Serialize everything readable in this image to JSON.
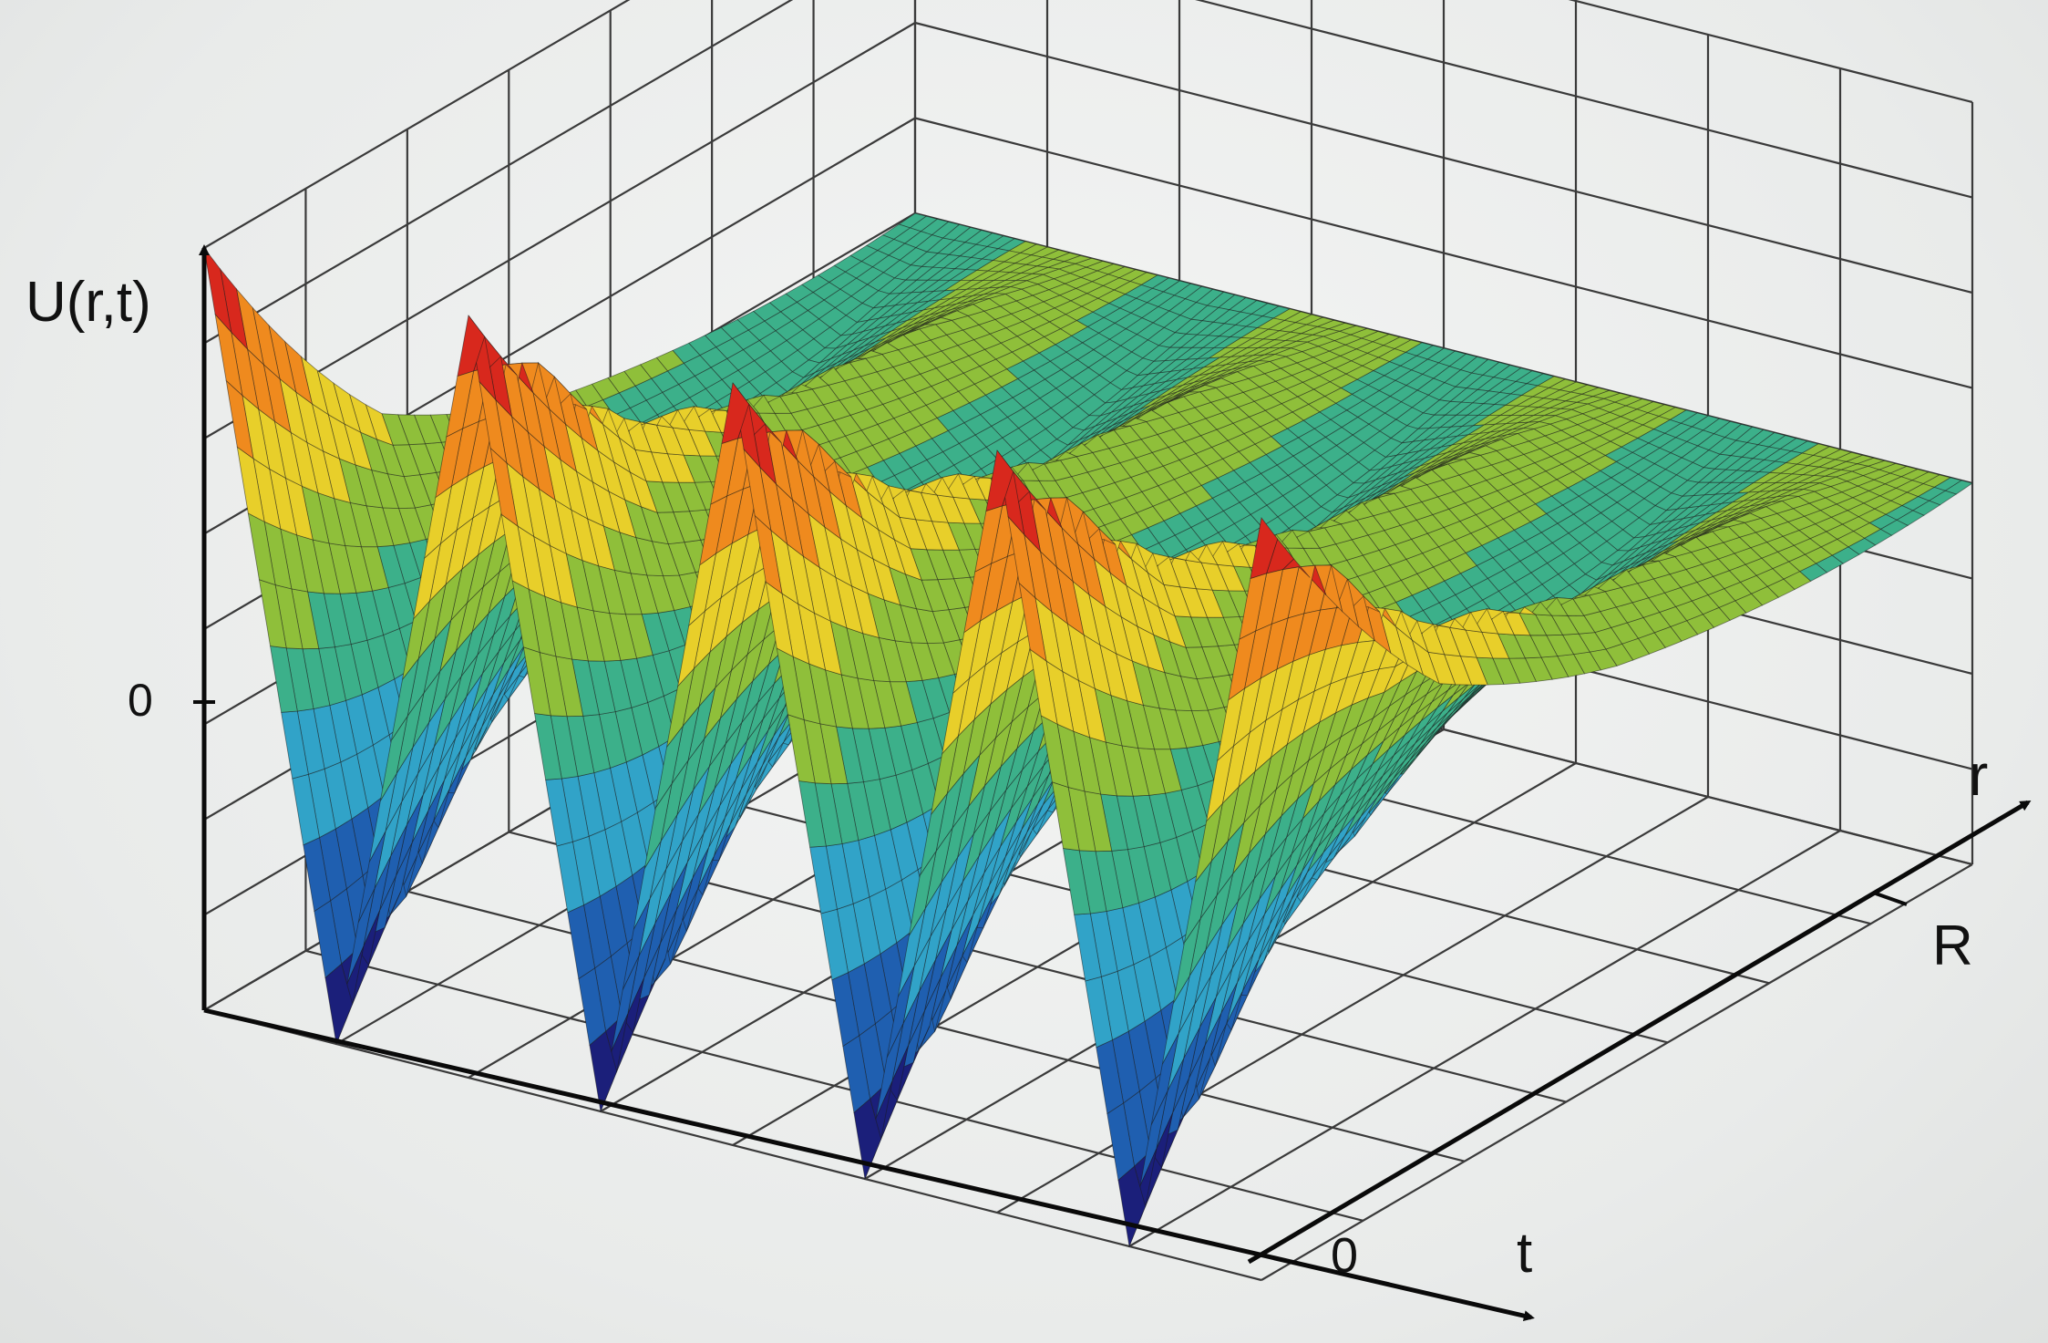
{
  "chart_data": {
    "type": "surface",
    "title": "",
    "z_label": "U(r,t)",
    "x_label": "t",
    "y_label": "r",
    "z_ticks": [
      "0"
    ],
    "t_ticks": [
      "0"
    ],
    "r_ticks": [
      "R"
    ],
    "grid": true,
    "colormap": [
      "#1b1f7a",
      "#1f5fb0",
      "#31a3c8",
      "#3cb08a",
      "#8fbf3a",
      "#e8cf2a",
      "#ef8a1e",
      "#d8281d"
    ],
    "t_range": [
      0,
      4
    ],
    "r_range": [
      0,
      1
    ],
    "z_range": [
      -1,
      1
    ],
    "oscillation_periods": 4,
    "amplitude_profile": [
      {
        "r": 0.0,
        "amp": 1.0
      },
      {
        "r": 0.25,
        "amp": 0.45
      },
      {
        "r": 0.5,
        "amp": 0.22
      },
      {
        "r": 0.75,
        "amp": 0.12
      },
      {
        "r": 1.0,
        "amp": 0.0
      }
    ]
  }
}
